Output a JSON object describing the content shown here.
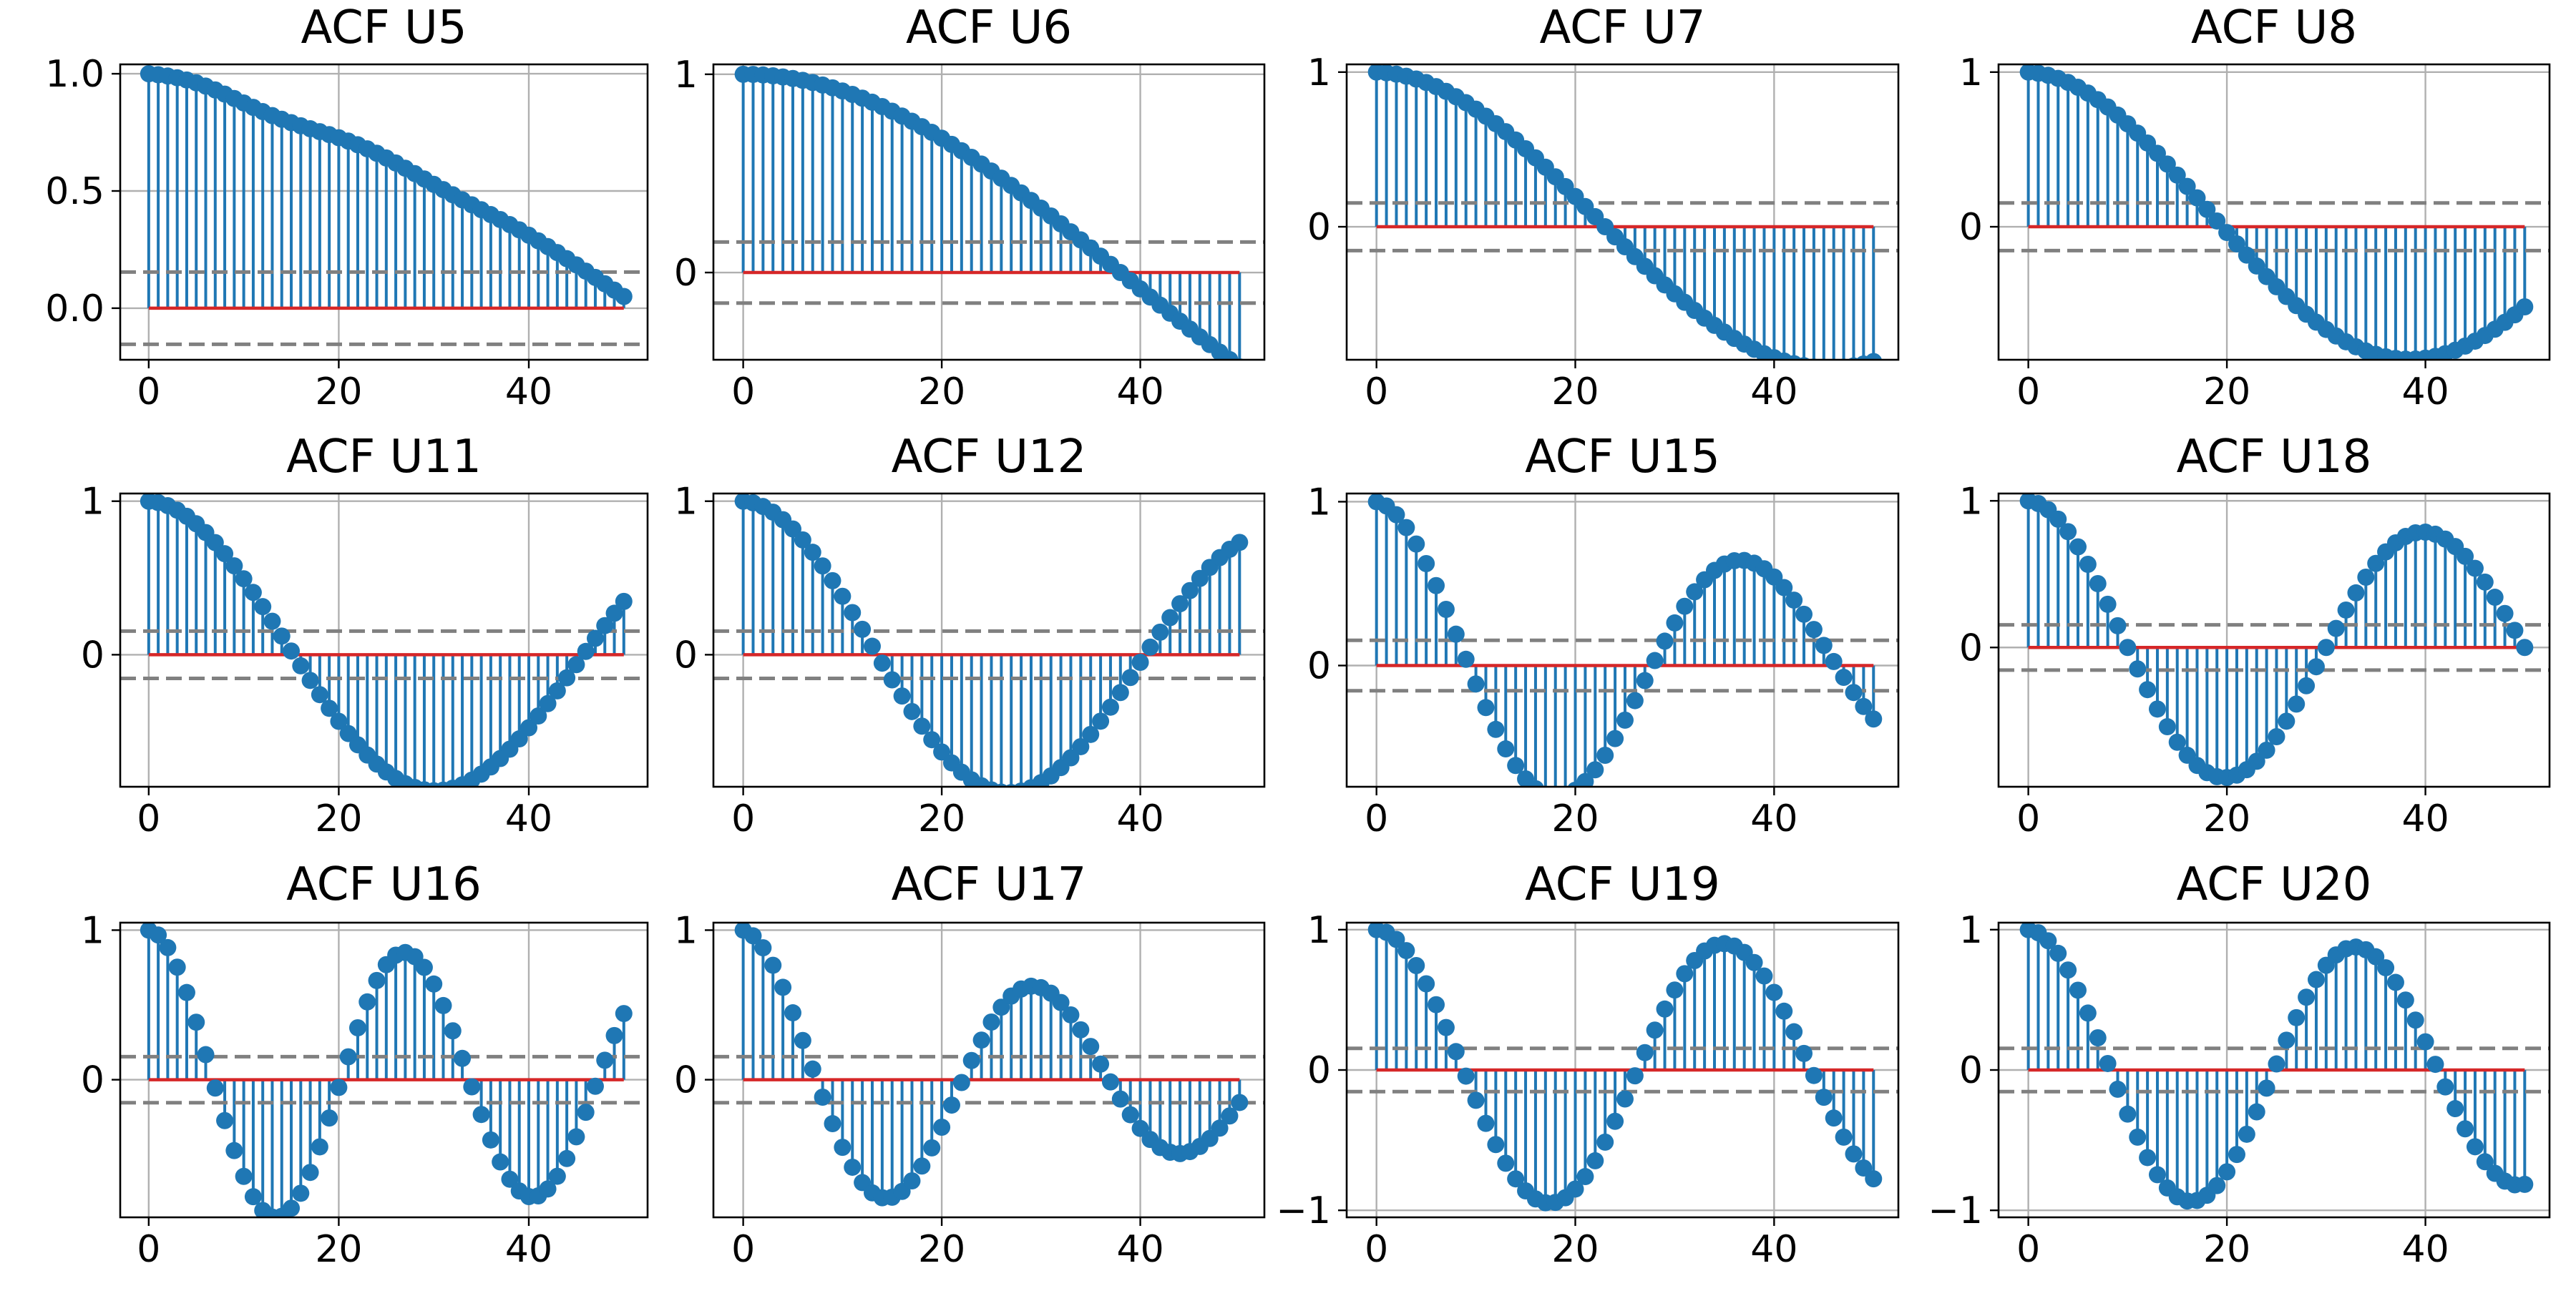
{
  "colors": {
    "stem": "#1f77b4",
    "baseline": "#d62728",
    "conf_band": "#808080",
    "grid": "#b0b0b0",
    "axes": "#000000"
  },
  "chart_data": [
    {
      "title": "ACF U5",
      "type": "stem",
      "kind": "damp",
      "period": 0,
      "damping": 0,
      "end": 0.05,
      "xlim": [
        -3,
        52.5
      ],
      "ylim": [
        -0.22,
        1.04
      ],
      "yticks": [
        0.0,
        0.5,
        1.0
      ],
      "yticklabels": [
        "0.0",
        "0.5",
        "1.0"
      ],
      "xticks": [
        0,
        20,
        40
      ],
      "conf_level": 0.154
    },
    {
      "title": "ACF U6",
      "type": "stem",
      "kind": "cos",
      "period": 152,
      "damping": 0.0,
      "xlim": [
        -3,
        52.5
      ],
      "ylim": [
        -0.44,
        1.05
      ],
      "yticks": [
        0,
        1
      ],
      "yticklabels": [
        "0",
        "1"
      ],
      "xticks": [
        0,
        20,
        40
      ],
      "conf_level": 0.154
    },
    {
      "title": "ACF U7",
      "type": "stem",
      "kind": "cos",
      "period": 92,
      "damping": 0.002,
      "xlim": [
        -3,
        52.5
      ],
      "ylim": [
        -0.86,
        1.05
      ],
      "yticks": [
        0,
        1
      ],
      "yticklabels": [
        "0",
        "1"
      ],
      "xticks": [
        0,
        20,
        40
      ],
      "conf_level": 0.154
    },
    {
      "title": "ACF U8",
      "type": "stem",
      "kind": "cos",
      "period": 78,
      "damping": 0.004,
      "xlim": [
        -3,
        52.5
      ],
      "ylim": [
        -0.86,
        1.05
      ],
      "yticks": [
        0,
        1
      ],
      "yticklabels": [
        "0",
        "1"
      ],
      "xticks": [
        0,
        20,
        40
      ],
      "conf_level": 0.154
    },
    {
      "title": "ACF U11",
      "type": "stem",
      "kind": "cos",
      "period": 61,
      "damping": 0.004,
      "xlim": [
        -3,
        52.5
      ],
      "ylim": [
        -0.86,
        1.05
      ],
      "yticks": [
        0,
        1
      ],
      "yticklabels": [
        "0",
        "1"
      ],
      "xticks": [
        0,
        20,
        40
      ],
      "conf_level": 0.154
    },
    {
      "title": "ACF U12",
      "type": "stem",
      "kind": "cos",
      "period": 54,
      "damping": 0.004,
      "xlim": [
        -3,
        52.5
      ],
      "ylim": [
        -0.86,
        1.05
      ],
      "yticks": [
        0,
        1
      ],
      "yticklabels": [
        "0",
        "1"
      ],
      "xticks": [
        0,
        20,
        40
      ],
      "conf_level": 0.154
    },
    {
      "title": "ACF U15",
      "type": "stem",
      "kind": "cos",
      "period": 37,
      "damping": 0.012,
      "xlim": [
        -3,
        52.5
      ],
      "ylim": [
        -0.74,
        1.05
      ],
      "yticks": [
        0,
        1
      ],
      "yticklabels": [
        "0",
        "1"
      ],
      "xticks": [
        0,
        20,
        40
      ],
      "conf_level": 0.154
    },
    {
      "title": "ACF U18",
      "type": "stem",
      "kind": "cos",
      "period": 40,
      "damping": 0.006,
      "xlim": [
        -3,
        52.5
      ],
      "ylim": [
        -0.95,
        1.05
      ],
      "yticks": [
        0,
        1
      ],
      "yticklabels": [
        "0",
        "1"
      ],
      "xticks": [
        0,
        20,
        40
      ],
      "conf_level": 0.154
    },
    {
      "title": "ACF U16",
      "type": "stem",
      "kind": "cos",
      "period": 27,
      "damping": 0.006,
      "xlim": [
        -3,
        52.5
      ],
      "ylim": [
        -0.92,
        1.05
      ],
      "yticks": [
        0,
        1
      ],
      "yticklabels": [
        "0",
        "1"
      ],
      "xticks": [
        0,
        20,
        40
      ],
      "conf_level": 0.154
    },
    {
      "title": "ACF U17",
      "type": "stem",
      "kind": "cos",
      "period": 29.5,
      "damping": 0.016,
      "xlim": [
        -3,
        52.5
      ],
      "ylim": [
        -0.92,
        1.05
      ],
      "yticks": [
        0,
        1
      ],
      "yticklabels": [
        "0",
        "1"
      ],
      "xticks": [
        0,
        20,
        40
      ],
      "conf_level": 0.154
    },
    {
      "title": "ACF U19",
      "type": "stem",
      "kind": "cos",
      "period": 35,
      "damping": 0.003,
      "xlim": [
        -3,
        52.5
      ],
      "ylim": [
        -1.05,
        1.05
      ],
      "yticks": [
        -1,
        0,
        1
      ],
      "yticklabels": [
        "−1",
        "0",
        "1"
      ],
      "xticks": [
        0,
        20,
        40
      ],
      "conf_level": 0.154
    },
    {
      "title": "ACF U20",
      "type": "stem",
      "kind": "cos",
      "period": 33,
      "damping": 0.004,
      "xlim": [
        -3,
        52.5
      ],
      "ylim": [
        -1.05,
        1.05
      ],
      "yticks": [
        -1,
        0,
        1
      ],
      "yticklabels": [
        "−1",
        "0",
        "1"
      ],
      "xticks": [
        0,
        20,
        40
      ],
      "conf_level": 0.154
    }
  ]
}
